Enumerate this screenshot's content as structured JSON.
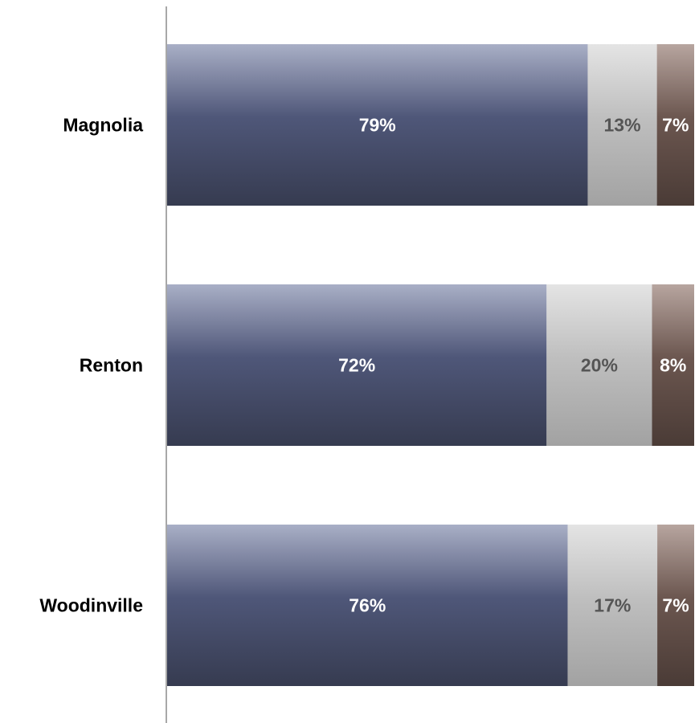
{
  "chart_data": {
    "type": "bar",
    "orientation": "horizontal",
    "stacked": "percent",
    "categories": [
      "Magnolia",
      "Renton",
      "Woodinville"
    ],
    "series": [
      {
        "values": [
          79,
          72,
          76
        ],
        "color": "#4b5475",
        "label_color": "#ffffff"
      },
      {
        "values": [
          13,
          20,
          17
        ],
        "color": "#bdbdbd",
        "label_color": "#555555"
      },
      {
        "values": [
          7,
          8,
          7
        ],
        "color": "#6b5650",
        "label_color": "#ffffff"
      }
    ],
    "data_labels": [
      [
        "79%",
        "13%",
        "7%"
      ],
      [
        "72%",
        "20%",
        "8%"
      ],
      [
        "76%",
        "17%",
        "7%"
      ]
    ],
    "xlim": [
      0,
      100
    ],
    "title": "",
    "xlabel": "",
    "ylabel": "",
    "legend": "none",
    "grid": false
  }
}
